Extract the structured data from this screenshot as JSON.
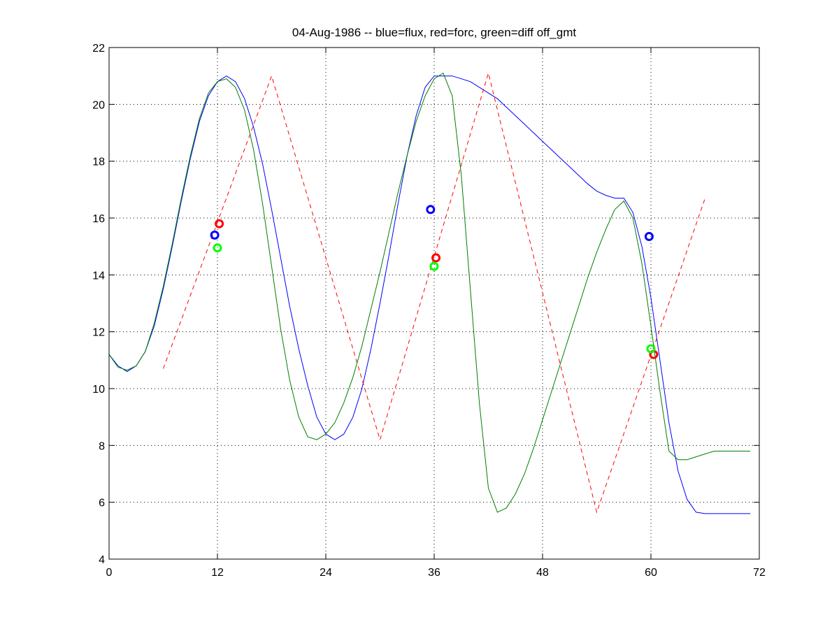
{
  "chart_data": {
    "type": "line",
    "title": "04-Aug-1986 -- blue=flux, red=forc, green=diff off_gmt",
    "xlabel": "",
    "ylabel": "",
    "xlim": [
      0,
      72
    ],
    "ylim": [
      4,
      22
    ],
    "xticks": [
      0,
      12,
      24,
      36,
      48,
      60,
      72
    ],
    "yticks": [
      4,
      6,
      8,
      10,
      12,
      14,
      16,
      18,
      20,
      22
    ],
    "grid": true,
    "series": [
      {
        "color": "#0000ff",
        "style": "solid",
        "x": [
          0,
          1,
          2,
          3,
          4,
          5,
          6,
          7,
          8,
          9,
          10,
          11,
          12,
          13,
          14,
          15,
          16,
          17,
          18,
          19,
          20,
          21,
          22,
          23,
          24,
          25,
          26,
          27,
          28,
          29,
          30,
          31,
          32,
          33,
          34,
          35,
          36,
          37,
          38,
          39,
          40,
          41,
          42,
          43,
          44,
          45,
          46,
          47,
          48,
          49,
          50,
          51,
          52,
          53,
          54,
          55,
          56,
          57,
          58,
          59,
          60,
          61,
          62,
          63,
          64,
          65,
          66,
          67,
          68,
          69,
          70,
          71
        ],
        "y": [
          11.2,
          10.8,
          10.6,
          10.8,
          11.3,
          12.2,
          13.5,
          15.0,
          16.6,
          18.1,
          19.4,
          20.3,
          20.8,
          21.0,
          20.8,
          20.2,
          19.2,
          17.9,
          16.3,
          14.6,
          12.9,
          11.4,
          10.1,
          9.0,
          8.4,
          8.2,
          8.4,
          9.0,
          10.0,
          11.4,
          13.0,
          14.7,
          16.5,
          18.2,
          19.6,
          20.6,
          21.0,
          21.0,
          21.0,
          20.9,
          20.8,
          20.6,
          20.4,
          20.2,
          19.9,
          19.6,
          19.3,
          19.0,
          18.7,
          18.4,
          18.1,
          17.8,
          17.5,
          17.2,
          16.95,
          16.8,
          16.7,
          16.7,
          16.2,
          15.0,
          13.2,
          11.0,
          8.8,
          7.1,
          6.1,
          5.65,
          5.6,
          5.6,
          5.6,
          5.6,
          5.6,
          5.6
        ],
        "points": [
          [
            11.7,
            15.4
          ],
          [
            35.6,
            16.3
          ],
          [
            59.8,
            15.35
          ]
        ]
      },
      {
        "color": "#ff0000",
        "style": "dashed",
        "x": [
          6,
          18,
          30,
          42,
          54,
          66
        ],
        "y": [
          10.7,
          21.0,
          8.2,
          21.1,
          5.65,
          16.7
        ],
        "points": [
          [
            12.2,
            15.8
          ],
          [
            36.2,
            14.6
          ],
          [
            60.3,
            11.2
          ]
        ]
      },
      {
        "color": "#007f00",
        "style": "solid",
        "x": [
          0,
          1,
          2,
          3,
          4,
          5,
          6,
          7,
          8,
          9,
          10,
          11,
          12,
          13,
          14,
          15,
          16,
          17,
          18,
          19,
          20,
          21,
          22,
          23,
          24,
          25,
          26,
          27,
          28,
          29,
          30,
          31,
          32,
          33,
          34,
          35,
          36,
          37,
          38,
          39,
          40,
          41,
          42,
          43,
          44,
          45,
          46,
          47,
          48,
          49,
          50,
          51,
          52,
          53,
          54,
          55,
          56,
          57,
          58,
          59,
          60,
          61,
          62,
          63,
          64,
          65,
          66,
          67,
          68,
          69,
          70,
          71
        ],
        "y": [
          11.2,
          10.75,
          10.65,
          10.8,
          11.3,
          12.3,
          13.6,
          15.1,
          16.7,
          18.2,
          19.5,
          20.4,
          20.8,
          20.9,
          20.6,
          19.8,
          18.4,
          16.5,
          14.3,
          12.1,
          10.3,
          9.0,
          8.3,
          8.2,
          8.4,
          8.8,
          9.5,
          10.4,
          11.5,
          12.8,
          14.1,
          15.5,
          16.9,
          18.2,
          19.4,
          20.3,
          20.9,
          21.1,
          20.3,
          17.5,
          13.5,
          9.5,
          6.5,
          5.65,
          5.8,
          6.3,
          7.0,
          7.9,
          8.9,
          9.9,
          10.9,
          11.9,
          12.9,
          13.9,
          14.8,
          15.6,
          16.3,
          16.6,
          16.0,
          14.4,
          12.2,
          9.9,
          7.8,
          7.5,
          7.5,
          7.6,
          7.7,
          7.8,
          7.8,
          7.8,
          7.8,
          7.8
        ],
        "points": [
          [
            12.0,
            14.95
          ],
          [
            36.0,
            14.3
          ],
          [
            60.0,
            11.4
          ]
        ]
      }
    ]
  }
}
